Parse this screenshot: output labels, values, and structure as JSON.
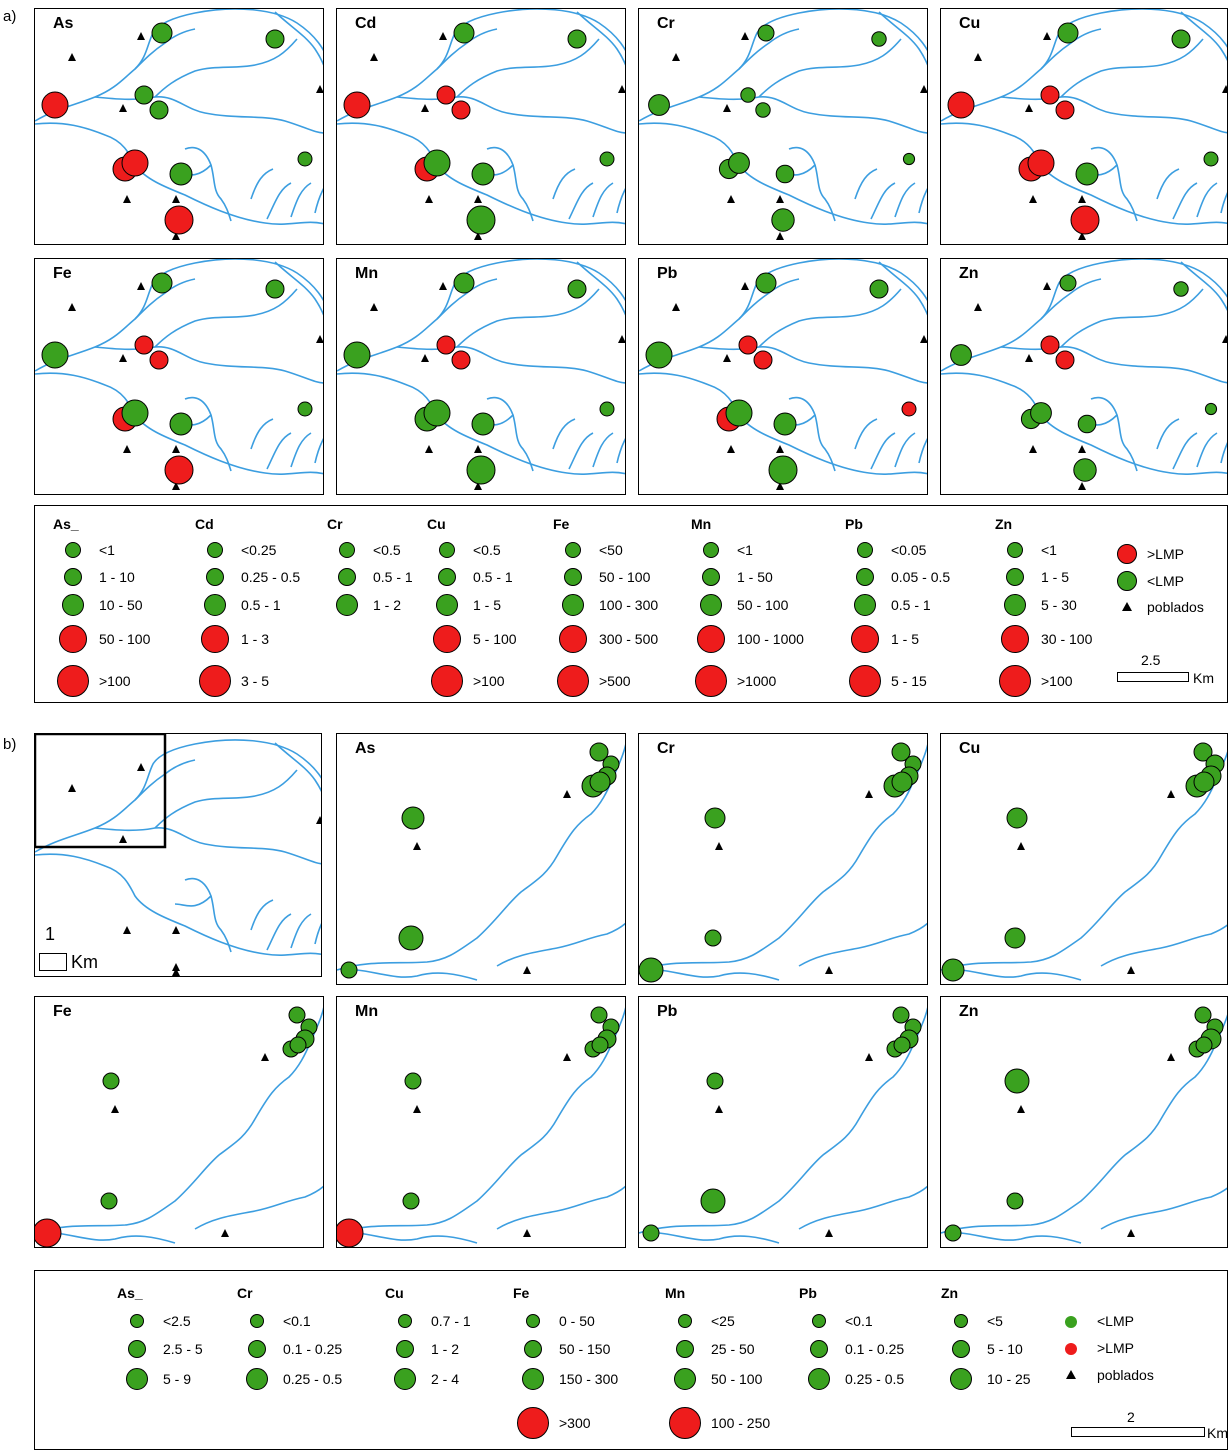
{
  "section_a": "a)",
  "section_b": "b)",
  "panels_a": [
    "As",
    "Cd",
    "Cr",
    "Cu",
    "Fe",
    "Mn",
    "Pb",
    "Zn"
  ],
  "panels_b": [
    "As",
    "Cr",
    "Cu",
    "Fe",
    "Mn",
    "Pb",
    "Zn"
  ],
  "colors": {
    "exceeds": "#ee1c1c",
    "below": "#3aa11f",
    "river": "#3c9ee0"
  },
  "legend_a": {
    "columns": [
      {
        "name": "As_",
        "classes": [
          "<1",
          "1 - 10",
          "10 - 50",
          "50 - 100",
          ">100"
        ]
      },
      {
        "name": "Cd",
        "classes": [
          "<0.25",
          "0.25 - 0.5",
          "0.5 - 1",
          "1 - 3",
          "3 - 5"
        ]
      },
      {
        "name": "Cr",
        "classes": [
          "<0.5",
          "0.5 - 1",
          "1 - 2"
        ]
      },
      {
        "name": "Cu",
        "classes": [
          "<0.5",
          "0.5 - 1",
          "1 - 5",
          "5 - 100",
          ">100"
        ]
      },
      {
        "name": "Fe",
        "classes": [
          "<50",
          "50 - 100",
          "100 - 300",
          "300 - 500",
          ">500"
        ]
      },
      {
        "name": "Mn",
        "classes": [
          "<1",
          "1 - 50",
          "50 - 100",
          "100 - 1000",
          ">1000"
        ]
      },
      {
        "name": "Pb",
        "classes": [
          "<0.05",
          "0.05 - 0.5",
          "0.5 - 1",
          "1 - 5",
          "5 - 15"
        ]
      },
      {
        "name": "Zn",
        "classes": [
          "<1",
          "1 - 5",
          "5 - 30",
          "30 - 100",
          ">100"
        ]
      }
    ],
    "key": {
      "exceeds": ">LMP",
      "below": "<LMP",
      "towns": "poblados"
    },
    "scale_value": "2.5",
    "scale_unit": "Km"
  },
  "legend_b": {
    "columns": [
      {
        "name": "As_",
        "classes": [
          "<2.5",
          "2.5 - 5",
          "5 - 9"
        ]
      },
      {
        "name": "Cr",
        "classes": [
          "<0.1",
          "0.1 - 0.25",
          "0.25 - 0.5"
        ]
      },
      {
        "name": "Cu",
        "classes": [
          "0.7 - 1",
          "1 - 2",
          "2 - 4"
        ]
      },
      {
        "name": "Fe",
        "classes": [
          "0 - 50",
          "50 - 150",
          "150 - 300",
          ">300"
        ]
      },
      {
        "name": "Mn",
        "classes": [
          "<25",
          "25 - 50",
          "50 - 100",
          "100 - 250"
        ]
      },
      {
        "name": "Pb",
        "classes": [
          "<0.1",
          "0.1 - 0.25",
          "0.25 - 0.5"
        ]
      },
      {
        "name": "Zn",
        "classes": [
          "<5",
          "5 - 10",
          "10 - 25"
        ]
      }
    ],
    "key": {
      "below": "<LMP",
      "exceeds": ">LMP",
      "towns": "poblados"
    },
    "scale_value": "2",
    "scale_unit": "Km"
  },
  "overview_scale": {
    "value": "1",
    "unit": "Km"
  }
}
